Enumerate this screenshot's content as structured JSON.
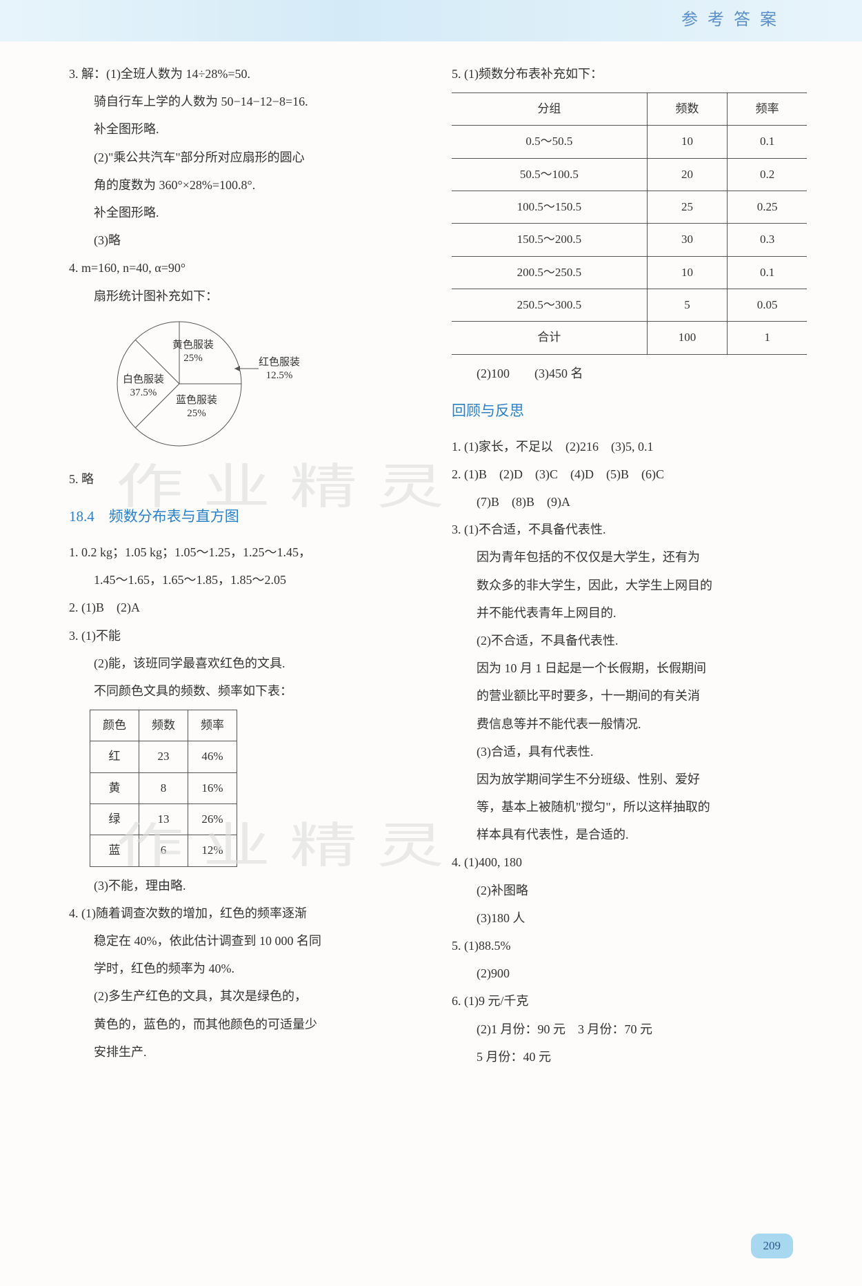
{
  "header": {
    "title": "参 考 答 案"
  },
  "left": {
    "q3": {
      "line1": "3. 解：(1)全班人数为 14÷28%=50.",
      "line2": "骑自行车上学的人数为 50−14−12−8=16.",
      "line3": "补全图形略.",
      "line4": "(2)\"乘公共汽车\"部分所对应扇形的圆心",
      "line5": "角的度数为 360°×28%=100.8°.",
      "line6": "补全图形略.",
      "line7": "(3)略"
    },
    "q4": {
      "line1": "4. m=160, n=40, α=90°",
      "line2": "扇形统计图补充如下："
    },
    "pie": {
      "yellow": {
        "label": "黄色服装",
        "pct": "25%"
      },
      "red": {
        "label": "红色服装",
        "pct": "12.5%"
      },
      "blue": {
        "label": "蓝色服装",
        "pct": "25%"
      },
      "white": {
        "label": "白色服装",
        "pct": "37.5%"
      }
    },
    "q5": "5. 略",
    "section184": "18.4　频数分布表与直方图",
    "sec184_q1a": "1. 0.2 kg；1.05 kg；1.05～1.25，1.25～1.45，",
    "sec184_q1b": "1.45～1.65，1.65～1.85，1.85～2.05",
    "sec184_q2": "2. (1)B　(2)A",
    "sec184_q3_1": "3. (1)不能",
    "sec184_q3_2": "(2)能，该班同学最喜欢红色的文具.",
    "sec184_q3_3": "不同颜色文具的频数、频率如下表：",
    "color_table": {
      "headers": [
        "颜色",
        "频数",
        "频率"
      ],
      "rows": [
        [
          "红",
          "23",
          "46%"
        ],
        [
          "黄",
          "8",
          "16%"
        ],
        [
          "绿",
          "13",
          "26%"
        ],
        [
          "蓝",
          "6",
          "12%"
        ]
      ]
    },
    "sec184_q3_4": "(3)不能，理由略.",
    "sec184_q4_1": "4. (1)随着调查次数的增加，红色的频率逐渐",
    "sec184_q4_2": "稳定在 40%，依此估计调查到 10 000 名同",
    "sec184_q4_3": "学时，红色的频率为 40%.",
    "sec184_q4_4": "(2)多生产红色的文具，其次是绿色的，",
    "sec184_q4_5": "黄色的，蓝色的，而其他颜色的可适量少",
    "sec184_q4_6": "安排生产."
  },
  "right": {
    "q5_head": "5. (1)频数分布表补充如下：",
    "freq_table": {
      "headers": [
        "分组",
        "频数",
        "频率"
      ],
      "rows": [
        [
          "0.5～50.5",
          "10",
          "0.1"
        ],
        [
          "50.5～100.5",
          "20",
          "0.2"
        ],
        [
          "100.5～150.5",
          "25",
          "0.25"
        ],
        [
          "150.5～200.5",
          "30",
          "0.3"
        ],
        [
          "200.5～250.5",
          "10",
          "0.1"
        ],
        [
          "250.5～300.5",
          "5",
          "0.05"
        ],
        [
          "合计",
          "100",
          "1"
        ]
      ]
    },
    "q5_sub": "(2)100　　(3)450 名",
    "review_title": "回顾与反思",
    "rv_q1": "1. (1)家长，不足以　(2)216　(3)5, 0.1",
    "rv_q2a": "2. (1)B　(2)D　(3)C　(4)D　(5)B　(6)C",
    "rv_q2b": "(7)B　(8)B　(9)A",
    "rv_q3_1": "3. (1)不合适，不具备代表性.",
    "rv_q3_2": "因为青年包括的不仅仅是大学生，还有为",
    "rv_q3_3": "数众多的非大学生，因此，大学生上网目的",
    "rv_q3_4": "并不能代表青年上网目的.",
    "rv_q3_5": "(2)不合适，不具备代表性.",
    "rv_q3_6": "因为 10 月 1 日起是一个长假期，长假期间",
    "rv_q3_7": "的营业额比平时要多，十一期间的有关消",
    "rv_q3_8": "费信息等并不能代表一般情况.",
    "rv_q3_9": "(3)合适，具有代表性.",
    "rv_q3_10": "因为放学期间学生不分班级、性别、爱好",
    "rv_q3_11": "等，基本上被随机\"搅匀\"，所以这样抽取的",
    "rv_q3_12": "样本具有代表性，是合适的.",
    "rv_q4_1": "4. (1)400, 180",
    "rv_q4_2": "(2)补图略",
    "rv_q4_3": "(3)180 人",
    "rv_q5_1": "5. (1)88.5%",
    "rv_q5_2": "(2)900",
    "rv_q6_1": "6. (1)9 元/千克",
    "rv_q6_2": "(2)1 月份：90 元　3 月份：70 元",
    "rv_q6_3": "5 月份：40 元"
  },
  "page_number": "209",
  "watermark": "作业精灵"
}
